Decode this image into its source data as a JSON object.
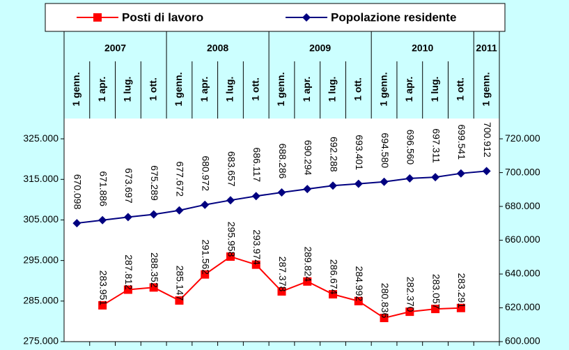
{
  "chart_data": {
    "type": "line",
    "years": [
      "2007",
      "2008",
      "2009",
      "2010",
      "2011"
    ],
    "categories": [
      "1 genn.",
      "1 apr.",
      "1 lug.",
      "1 ott.",
      "1 genn.",
      "1 apr.",
      "1 lug.",
      "1 ott.",
      "1 genn.",
      "1 apr.",
      "1 lug.",
      "1 ott.",
      "1 genn.",
      "1 apr.",
      "1 lug.",
      "1 ott.",
      "1 genn."
    ],
    "series": [
      {
        "name": "Posti di lavoro",
        "color": "#ff0000",
        "marker": "square",
        "values": [
          null,
          283951,
          287812,
          288352,
          285147,
          291562,
          295958,
          293974,
          287378,
          289824,
          286674,
          284992,
          280836,
          282370,
          283057,
          283291,
          null
        ],
        "value_labels": [
          null,
          "283.951",
          "287.812",
          "288.352",
          "285.147",
          "291.562",
          "295.958",
          "293.974",
          "287.378",
          "289.824",
          "286.674",
          "284.992",
          "280.836",
          "282.370",
          "283.057",
          "283.291",
          null
        ]
      },
      {
        "name": "Popolazione residente",
        "color": "#000080",
        "marker": "diamond",
        "axis": "y2",
        "values": [
          670098,
          671886,
          673697,
          675289,
          677672,
          680972,
          683657,
          686117,
          688286,
          690294,
          692288,
          693401,
          694580,
          696560,
          697311,
          699541,
          700912
        ],
        "value_labels": [
          "670.098",
          "671.886",
          "673.697",
          "675.289",
          "677.672",
          "680.972",
          "683.657",
          "686.117",
          "688.286",
          "690.294",
          "692.288",
          "693.401",
          "694.580",
          "696.560",
          "697.311",
          "699.541",
          "700.912"
        ]
      }
    ],
    "ylim": [
      275000,
      330000
    ],
    "yticks": [
      {
        "value": 275000,
        "label": "275.000"
      },
      {
        "value": 285000,
        "label": "285.000"
      },
      {
        "value": 295000,
        "label": "295.000"
      },
      {
        "value": 305000,
        "label": "305.000"
      },
      {
        "value": 315000,
        "label": "315.000"
      },
      {
        "value": 325000,
        "label": "325.000"
      }
    ],
    "y2lim": [
      600000,
      732000
    ],
    "y2ticks": [
      {
        "value": 600000,
        "label": "600.000"
      },
      {
        "value": 620000,
        "label": "620.000"
      },
      {
        "value": 640000,
        "label": "640.000"
      },
      {
        "value": 660000,
        "label": "660.000"
      },
      {
        "value": 680000,
        "label": "680.000"
      },
      {
        "value": 700000,
        "label": "700.000"
      },
      {
        "value": 720000,
        "label": "720.000"
      }
    ],
    "legend": "top"
  }
}
